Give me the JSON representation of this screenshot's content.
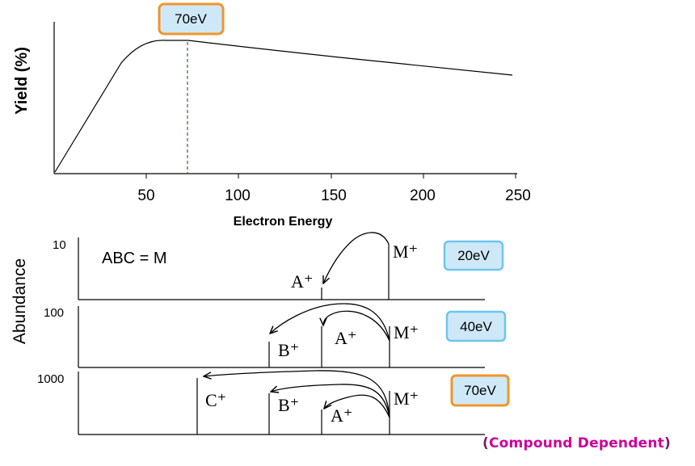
{
  "top_chart": {
    "y_axis_label": "Yield (%)",
    "x_axis_label": "Electron Energy",
    "x_ticks": [
      "50",
      "100",
      "150",
      "200",
      "250"
    ],
    "callout": "70eV",
    "callout_color": "#f0962a",
    "callout_fill": "#cfe8f8"
  },
  "chart_data": {
    "type": "line",
    "title": "",
    "xlabel": "Electron Energy",
    "ylabel": "Yield (%)",
    "xticks": [
      50,
      100,
      150,
      200,
      250
    ],
    "highlight_x": 70,
    "series": [
      {
        "x": [
          0,
          40,
          50,
          60,
          70,
          100,
          150,
          200,
          245
        ],
        "y": [
          0,
          85,
          94,
          97,
          97,
          94,
          85,
          76,
          70
        ]
      }
    ]
  },
  "bottom_panels": {
    "y_axis_label": "Abundance",
    "equation": "ABC = M",
    "panels": [
      {
        "scale": "10",
        "energy": "20eV",
        "ions": [
          "A⁺",
          "M⁺"
        ]
      },
      {
        "scale": "100",
        "energy": "40eV",
        "ions": [
          "B⁺",
          "A⁺",
          "M⁺"
        ]
      },
      {
        "scale": "1000",
        "energy": "70eV",
        "ions": [
          "C⁺",
          "B⁺",
          "A⁺",
          "M⁺"
        ]
      }
    ],
    "energy_box_colors": {
      "default_border": "#6cc6ee",
      "highlight_border": "#f0962a",
      "fill": "#cfe8f8"
    }
  },
  "footer": {
    "open_paren": "(",
    "text": "Compound Dependent",
    "close_paren": ")",
    "text_color": "#cc0099",
    "paren_color": "#7a1a6a"
  }
}
